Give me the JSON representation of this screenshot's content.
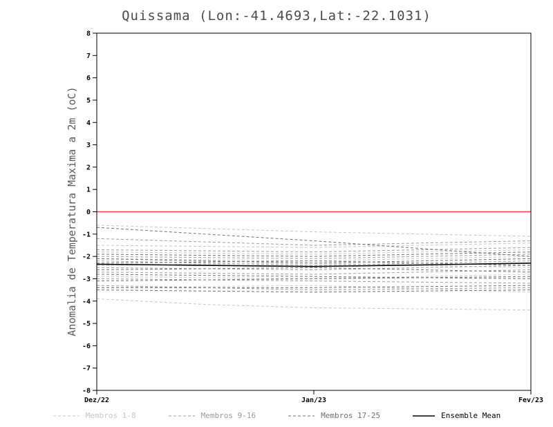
{
  "chart_data": {
    "type": "line",
    "title": "Quissama (Lon:-41.4693,Lat:-22.1031)",
    "ylabel": "Anomalia de Temperatura Maxima a 2m (oC)",
    "xlabel": "",
    "ylim": [
      -8,
      8
    ],
    "y_ticks": [
      -8,
      -7,
      -6,
      -5,
      -4,
      -3,
      -2,
      -1,
      0,
      1,
      2,
      3,
      4,
      5,
      6,
      7,
      8
    ],
    "x": [
      0,
      0.5,
      1,
      1.5,
      2
    ],
    "x_tick_positions": [
      0,
      1,
      2
    ],
    "x_tick_labels": [
      "Dez/22",
      "Jan/23",
      "Fev/23"
    ],
    "grid": false,
    "legend_position": "bottom",
    "zero_line": {
      "y": 0,
      "color": "#e8463c"
    },
    "groups": [
      {
        "name": "Membros 1-8",
        "color": "#c6c6c6",
        "dash": "4,3",
        "members": [
          [
            -0.6,
            -0.75,
            -0.9,
            -1.0,
            -1.1
          ],
          [
            -1.5,
            -1.55,
            -1.6,
            -1.5,
            -1.4
          ],
          [
            -1.8,
            -1.85,
            -1.9,
            -1.8,
            -1.7
          ],
          [
            -2.1,
            -2.15,
            -2.2,
            -2.1,
            -2.0
          ],
          [
            -2.4,
            -2.35,
            -2.3,
            -2.4,
            -2.5
          ],
          [
            -2.9,
            -2.95,
            -3.0,
            -2.9,
            -2.8
          ],
          [
            -3.4,
            -3.35,
            -3.3,
            -3.45,
            -3.6
          ],
          [
            -3.9,
            -4.15,
            -4.3,
            -4.35,
            -4.4
          ]
        ]
      },
      {
        "name": "Membros 9-16",
        "color": "#9b9b9b",
        "dash": "4,3",
        "members": [
          [
            -1.2,
            -1.35,
            -1.5,
            -1.4,
            -1.3
          ],
          [
            -1.7,
            -1.75,
            -1.8,
            -1.7,
            -1.6
          ],
          [
            -2.0,
            -2.05,
            -2.1,
            -2.0,
            -1.9
          ],
          [
            -2.2,
            -2.3,
            -2.4,
            -2.3,
            -2.2
          ],
          [
            -2.5,
            -2.55,
            -2.6,
            -2.5,
            -2.4
          ],
          [
            -2.7,
            -2.75,
            -2.8,
            -2.7,
            -2.6
          ],
          [
            -3.0,
            -3.05,
            -3.1,
            -3.15,
            -3.2
          ],
          [
            -3.3,
            -3.4,
            -3.5,
            -3.45,
            -3.4
          ]
        ]
      },
      {
        "name": "Membros 17-25",
        "color": "#6f6f6f",
        "dash": "4,3",
        "members": [
          [
            -0.7,
            -1.0,
            -1.3,
            -1.65,
            -2.0
          ],
          [
            -1.9,
            -1.95,
            -2.0,
            -1.9,
            -1.8
          ],
          [
            -2.1,
            -2.2,
            -2.3,
            -2.2,
            -2.1
          ],
          [
            -2.3,
            -2.25,
            -2.2,
            -2.3,
            -2.4
          ],
          [
            -2.6,
            -2.55,
            -2.5,
            -2.6,
            -2.7
          ],
          [
            -2.8,
            -2.85,
            -2.9,
            -2.95,
            -3.0
          ],
          [
            -3.1,
            -3.05,
            -3.0,
            -2.95,
            -2.9
          ],
          [
            -3.4,
            -3.4,
            -3.4,
            -3.35,
            -3.3
          ],
          [
            -3.5,
            -3.55,
            -3.6,
            -3.55,
            -3.5
          ]
        ]
      }
    ],
    "mean": {
      "name": "Ensemble Mean",
      "color": "#000000",
      "values": [
        -2.35,
        -2.4,
        -2.45,
        -2.38,
        -2.3
      ]
    }
  }
}
